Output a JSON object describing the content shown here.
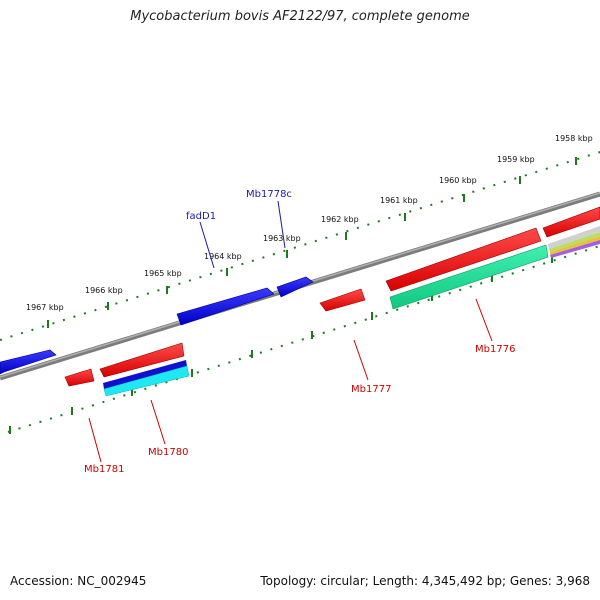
{
  "title": "Mycobacterium bovis AF2122/97, complete genome",
  "footer": {
    "accession": "Accession: NC_002945",
    "summary": "Topology: circular; Length: 4,345,492 bp; Genes: 3,968"
  },
  "colors": {
    "backbone": "#8a8a8a",
    "tick": "#1e7a1e",
    "forward_gene": "#1010e0",
    "reverse_gene": "#ee1010",
    "cds_cyan": "#20e8f0",
    "cds_green": "#20e090",
    "forward_label": "#1a1ab0",
    "reverse_label": "#cc0000"
  },
  "scale_labels": [
    "1958 kbp",
    "1959 kbp",
    "1960 kbp",
    "1961 kbp",
    "1962 kbp",
    "1963 kbp",
    "1964 kbp",
    "1965 kbp",
    "1966 kbp",
    "1967 kbp"
  ],
  "gene_labels": {
    "forward": [
      "Mb1778c",
      "fadD1"
    ],
    "reverse": [
      "Mb1776",
      "Mb1777",
      "Mb1780",
      "Mb1781"
    ]
  }
}
